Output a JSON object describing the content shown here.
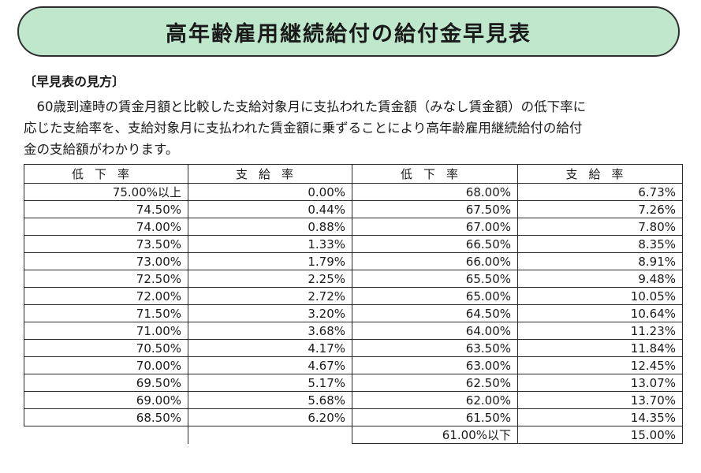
{
  "banner": {
    "title": "高年齢雇用継続給付の給付金早見表"
  },
  "section": {
    "heading": "〔早見表の見方〕",
    "lines": [
      "60歳到達時の賃金月額と比較した支給対象月に支払われた賃金額（みなし賃金額）の低下率に",
      "応じた支給率を、支給対象月に支払われた賃金額に乗ずることにより高年齢雇用継続給付の給付",
      "金の支給額がわかります。"
    ]
  },
  "table": {
    "headers": [
      "低下率",
      "支給率",
      "低下率",
      "支給率"
    ],
    "left_rows": [
      [
        "75.00%以上",
        "0.00%"
      ],
      [
        "74.50%",
        "0.44%"
      ],
      [
        "74.00%",
        "0.88%"
      ],
      [
        "73.50%",
        "1.33%"
      ],
      [
        "73.00%",
        "1.79%"
      ],
      [
        "72.50%",
        "2.25%"
      ],
      [
        "72.00%",
        "2.72%"
      ],
      [
        "71.50%",
        "3.20%"
      ],
      [
        "71.00%",
        "3.68%"
      ],
      [
        "70.50%",
        "4.17%"
      ],
      [
        "70.00%",
        "4.67%"
      ],
      [
        "69.50%",
        "5.17%"
      ],
      [
        "69.00%",
        "5.68%"
      ],
      [
        "68.50%",
        "6.20%"
      ]
    ],
    "right_rows": [
      [
        "68.00%",
        "6.73%"
      ],
      [
        "67.50%",
        "7.26%"
      ],
      [
        "67.00%",
        "7.80%"
      ],
      [
        "66.50%",
        "8.35%"
      ],
      [
        "66.00%",
        "8.91%"
      ],
      [
        "65.50%",
        "9.48%"
      ],
      [
        "65.00%",
        "10.05%"
      ],
      [
        "64.50%",
        "10.64%"
      ],
      [
        "64.00%",
        "11.23%"
      ],
      [
        "63.50%",
        "11.84%"
      ],
      [
        "63.00%",
        "12.45%"
      ],
      [
        "62.50%",
        "13.07%"
      ],
      [
        "62.00%",
        "13.70%"
      ],
      [
        "61.50%",
        "14.35%"
      ],
      [
        "61.00%以下",
        "15.00%"
      ]
    ]
  },
  "colors": {
    "banner_fill": "#bfe7cc",
    "border": "#2a2a2a"
  }
}
